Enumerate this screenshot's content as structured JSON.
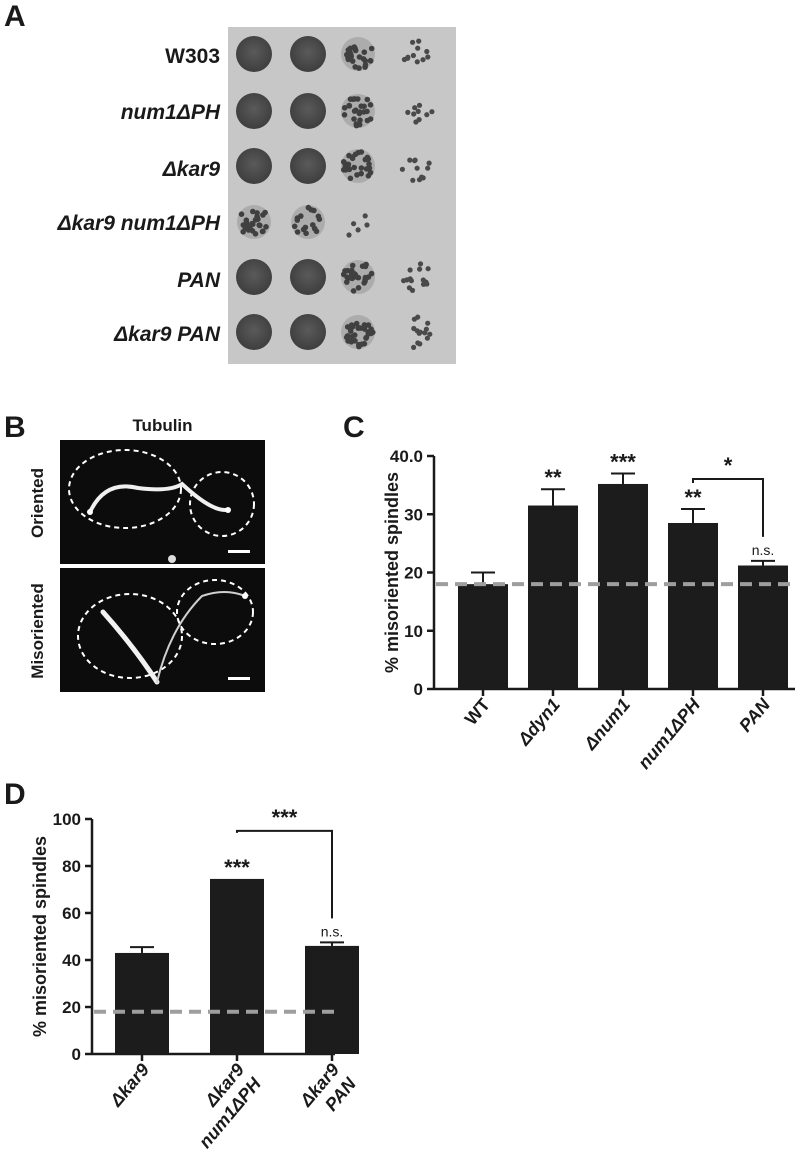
{
  "panels": {
    "A": "A",
    "B": "B",
    "C": "C",
    "D": "D"
  },
  "panelA": {
    "strains": [
      {
        "label": "W303",
        "italic": false
      },
      {
        "label": "num1ΔPH",
        "italic": true
      },
      {
        "label": "Δkar9",
        "italic": true
      },
      {
        "label": "Δkar9 num1ΔPH",
        "italic": true
      },
      {
        "label": "PAN",
        "italic": true
      },
      {
        "label": "Δkar9 PAN",
        "italic": true
      }
    ]
  },
  "panelB": {
    "title": "Tubulin",
    "rows": [
      "Oriented",
      "Misoriented"
    ]
  },
  "chart_data": [
    {
      "panel": "C",
      "type": "bar",
      "categories": [
        "WT",
        "Δdyn1",
        "Δnum1",
        "num1ΔPH",
        "PAN"
      ],
      "values": [
        18,
        31.5,
        35.2,
        28.5,
        21.2
      ],
      "errors": [
        2,
        2.8,
        1.8,
        2.4,
        0.8
      ],
      "significance": [
        "",
        "**",
        "***",
        "**",
        "n.s."
      ],
      "bracket": {
        "from": "num1ΔPH",
        "to": "PAN",
        "label": "*"
      },
      "reference_line": 18,
      "ylabel": "% misoriented spindles",
      "ylim": [
        0,
        40
      ],
      "yticks": [
        "0",
        "10",
        "20",
        "30",
        "40.0"
      ],
      "bar_color": "#1c1c1c",
      "reference_color": "#9e9e9e"
    },
    {
      "panel": "D",
      "type": "bar",
      "categories": [
        [
          "Δkar9"
        ],
        [
          "Δkar9",
          "num1ΔPH"
        ],
        [
          "Δkar9",
          "PAN"
        ]
      ],
      "values": [
        43,
        74.5,
        46
      ],
      "errors": [
        2.5,
        0,
        1.5
      ],
      "significance": [
        "",
        "***",
        "n.s."
      ],
      "bracket": {
        "from": 1,
        "to": 2,
        "label": "***"
      },
      "reference_line": 18,
      "ylabel": "% misoriented spindles",
      "ylim": [
        0,
        100
      ],
      "yticks": [
        "0",
        "20",
        "40",
        "60",
        "80",
        "100"
      ],
      "bar_color": "#1c1c1c",
      "reference_color": "#9e9e9e"
    }
  ]
}
